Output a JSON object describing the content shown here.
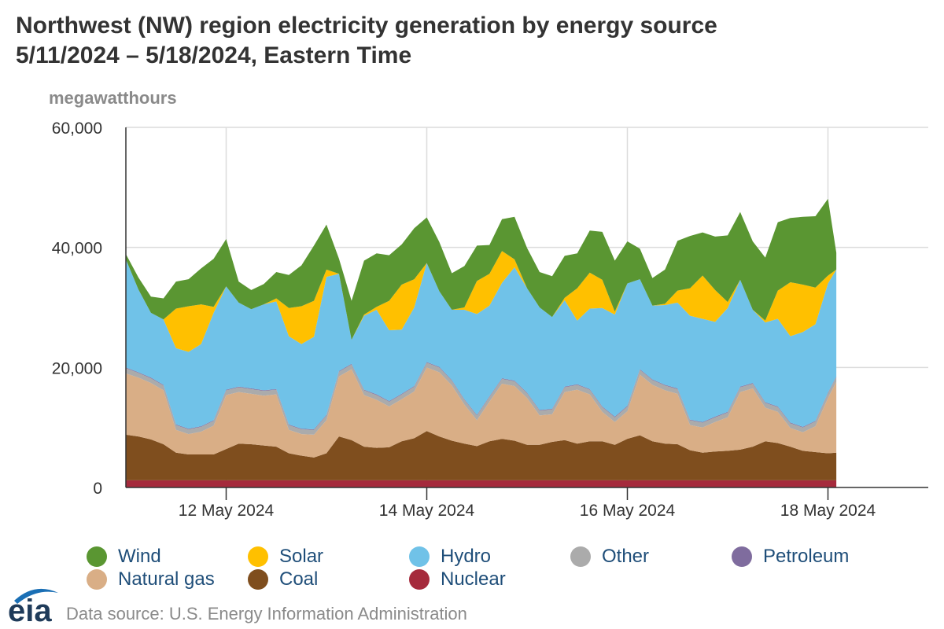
{
  "title_line1": "Northwest (NW) region electricity generation by energy source",
  "title_line2": "5/11/2024 – 5/18/2024, Eastern Time",
  "legend": [
    {
      "name": "Wind",
      "color": "#5a9632"
    },
    {
      "name": "Solar",
      "color": "#ffc000"
    },
    {
      "name": "Hydro",
      "color": "#70c2e8"
    },
    {
      "name": "Other",
      "color": "#ababab"
    },
    {
      "name": "Petroleum",
      "color": "#7f6c9e"
    },
    {
      "name": "Natural gas",
      "color": "#d9ae86"
    },
    {
      "name": "Coal",
      "color": "#7f4e1e"
    },
    {
      "name": "Nuclear",
      "color": "#a52a3c"
    }
  ],
  "footer": {
    "logo_text": "eia",
    "source": "Data source: U.S. Energy Information Administration"
  },
  "chart_data": {
    "type": "area",
    "stacked": true,
    "ylabel": "megawatthours",
    "ylim": [
      0,
      60000
    ],
    "yticks": [
      {
        "value": 0,
        "label": "0"
      },
      {
        "value": 20000,
        "label": "20,000"
      },
      {
        "value": 40000,
        "label": "40,000"
      },
      {
        "value": 60000,
        "label": "60,000"
      }
    ],
    "x_unit": "hours since 5/11/2024 00:00 ET",
    "xlim": [
      0,
      192
    ],
    "xticks": [
      {
        "hour": 24,
        "label": "12 May 2024"
      },
      {
        "hour": 72,
        "label": "14 May 2024"
      },
      {
        "hour": 120,
        "label": "16 May 2024"
      },
      {
        "hour": 168,
        "label": "18 May 2024"
      }
    ],
    "x": [
      0,
      3,
      6,
      9,
      12,
      15,
      18,
      21,
      24,
      27,
      30,
      33,
      36,
      39,
      42,
      45,
      48,
      51,
      54,
      57,
      60,
      63,
      66,
      69,
      72,
      75,
      78,
      81,
      84,
      87,
      90,
      93,
      96,
      99,
      102,
      105,
      108,
      111,
      114,
      117,
      120,
      123,
      126,
      129,
      132,
      135,
      138,
      141,
      144,
      147,
      150,
      153,
      156,
      159,
      162,
      165,
      168,
      170
    ],
    "series": [
      {
        "name": "Nuclear",
        "values": [
          1200,
          1200,
          1200,
          1200,
          1200,
          1200,
          1200,
          1200,
          1200,
          1200,
          1200,
          1200,
          1200,
          1200,
          1200,
          1200,
          1200,
          1200,
          1200,
          1200,
          1200,
          1200,
          1200,
          1200,
          1200,
          1200,
          1200,
          1200,
          1200,
          1200,
          1200,
          1200,
          1200,
          1200,
          1200,
          1200,
          1200,
          1200,
          1200,
          1200,
          1200,
          1200,
          1200,
          1200,
          1200,
          1200,
          1200,
          1200,
          1200,
          1200,
          1200,
          1200,
          1200,
          1200,
          1200,
          1200,
          1200,
          1200
        ]
      },
      {
        "name": "Coal",
        "values": [
          7600,
          7300,
          6800,
          6000,
          4600,
          4300,
          4300,
          4300,
          5200,
          6100,
          6000,
          5800,
          5600,
          4500,
          4100,
          3800,
          4500,
          7300,
          6700,
          5600,
          5400,
          5500,
          6500,
          7000,
          8200,
          7300,
          6600,
          6100,
          5700,
          6500,
          6900,
          6600,
          5900,
          5900,
          6400,
          6700,
          6100,
          6500,
          6500,
          5900,
          6900,
          7500,
          6500,
          6100,
          6000,
          5000,
          4600,
          4800,
          4900,
          5100,
          5600,
          6500,
          6200,
          5600,
          4900,
          4700,
          4500,
          4600
        ]
      },
      {
        "name": "Natural gas",
        "values": [
          10200,
          9800,
          9400,
          9000,
          3800,
          3400,
          3800,
          4800,
          9000,
          8600,
          8400,
          8300,
          8700,
          3900,
          3600,
          3800,
          5500,
          10000,
          11800,
          8600,
          8000,
          6800,
          7000,
          7800,
          10600,
          10700,
          9200,
          6500,
          4300,
          6600,
          9200,
          9100,
          7800,
          4900,
          4600,
          8000,
          9000,
          7800,
          4900,
          3800,
          4600,
          10100,
          9400,
          8900,
          8400,
          4200,
          4200,
          4900,
          5600,
          9600,
          9700,
          5600,
          5200,
          3100,
          3100,
          4300,
          9200,
          11800
        ]
      },
      {
        "name": "Other",
        "values": [
          900,
          800,
          800,
          800,
          800,
          800,
          800,
          800,
          800,
          800,
          800,
          800,
          800,
          800,
          800,
          800,
          800,
          800,
          800,
          800,
          800,
          800,
          800,
          800,
          800,
          800,
          800,
          800,
          800,
          800,
          800,
          800,
          800,
          800,
          800,
          800,
          800,
          800,
          800,
          800,
          800,
          800,
          800,
          800,
          800,
          800,
          800,
          800,
          800,
          800,
          800,
          800,
          800,
          800,
          800,
          800,
          800,
          800
        ]
      },
      {
        "name": "Petroleum",
        "values": [
          100,
          100,
          100,
          100,
          100,
          100,
          100,
          100,
          100,
          100,
          100,
          100,
          100,
          100,
          100,
          100,
          100,
          100,
          100,
          100,
          100,
          100,
          100,
          100,
          100,
          100,
          100,
          100,
          100,
          100,
          100,
          100,
          100,
          100,
          100,
          100,
          100,
          100,
          100,
          100,
          100,
          100,
          100,
          100,
          100,
          100,
          100,
          100,
          100,
          100,
          100,
          100,
          100,
          100,
          100,
          100,
          100,
          100
        ]
      },
      {
        "name": "Hydro",
        "values": [
          18000,
          13800,
          10800,
          10900,
          12700,
          12800,
          13700,
          17900,
          17200,
          14000,
          13200,
          14300,
          14600,
          14700,
          14100,
          15400,
          23000,
          16200,
          4000,
          12300,
          14100,
          11800,
          10700,
          13100,
          16500,
          12600,
          11700,
          14900,
          16800,
          15100,
          15900,
          18900,
          17400,
          17100,
          15300,
          14400,
          10600,
          13400,
          16400,
          17000,
          20400,
          15000,
          12300,
          13300,
          14300,
          17300,
          17200,
          15800,
          17300,
          17800,
          12200,
          13300,
          14600,
          14400,
          15800,
          16100,
          18200,
          17800
        ]
      },
      {
        "name": "Solar",
        "values": [
          0,
          0,
          0,
          0,
          6600,
          7600,
          6600,
          1000,
          0,
          0,
          0,
          0,
          500,
          4700,
          6300,
          6000,
          1200,
          0,
          0,
          200,
          500,
          4900,
          7500,
          4700,
          0,
          0,
          0,
          400,
          5500,
          5300,
          5300,
          1300,
          0,
          0,
          0,
          400,
          5400,
          6000,
          4700,
          500,
          0,
          0,
          0,
          200,
          2000,
          4600,
          7200,
          5300,
          1000,
          0,
          0,
          300,
          4700,
          9000,
          7900,
          6100,
          1300,
          0
        ]
      },
      {
        "name": "Wind",
        "values": [
          900,
          2000,
          2700,
          3500,
          4500,
          4500,
          6000,
          8000,
          7900,
          3500,
          3200,
          3400,
          4400,
          5500,
          6800,
          9200,
          7500,
          2500,
          6500,
          9000,
          8900,
          7600,
          6700,
          8500,
          7600,
          8200,
          6100,
          6900,
          5900,
          4800,
          5300,
          7100,
          6700,
          5900,
          6800,
          7000,
          5800,
          7000,
          8000,
          8500,
          7000,
          5100,
          4600,
          5700,
          8300,
          8700,
          7200,
          8900,
          11100,
          11300,
          11400,
          10500,
          11400,
          10700,
          11300,
          11900,
          12800,
          2800
        ]
      }
    ]
  }
}
